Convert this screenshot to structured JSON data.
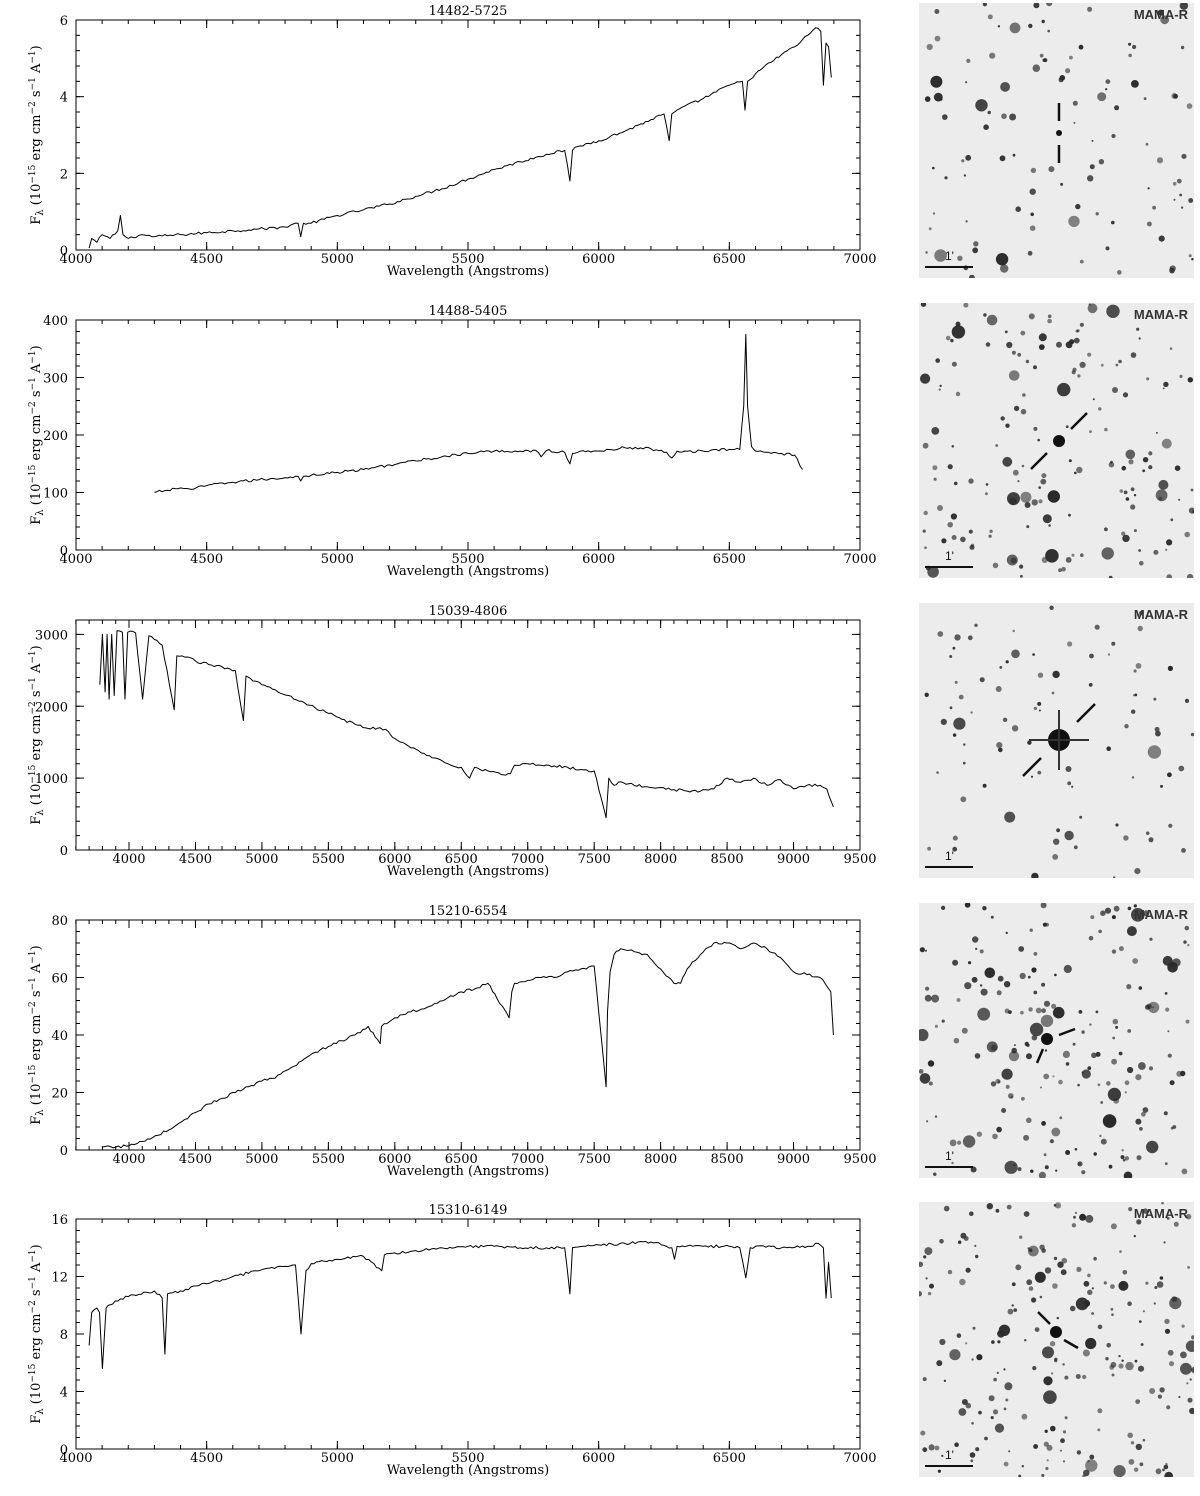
{
  "figure": {
    "xlabel": "Wavelength (Angstroms)",
    "ylabel_parts": {
      "flux": "F",
      "flux_sub": "λ",
      "open": " (10",
      "exp1": "−15",
      "erg": " erg cm",
      "exp2": "−2",
      "s": " s",
      "exp3": "−1",
      "A": " A",
      "exp4": "−1",
      "close": ")"
    },
    "finder_label": "MAMA-R",
    "scale_label": "1'"
  },
  "chart_data": [
    {
      "type": "line",
      "title": "14482-5725",
      "xlabel": "Wavelength (Angstroms)",
      "ylabel": "Fλ (10^-15 erg cm^-2 s^-1 A^-1)",
      "xlim": [
        4000,
        7000
      ],
      "ylim": [
        0,
        6
      ],
      "xticks": [
        "4000",
        "4500",
        "5000",
        "5500",
        "6000",
        "6500",
        "7000"
      ],
      "yticks": [
        "0",
        "2",
        "4",
        "6"
      ],
      "series": [
        {
          "x": [
            4050,
            4060,
            4080,
            4100,
            4130,
            4160,
            4170,
            4180,
            4200,
            4250,
            4300,
            4400,
            4500,
            4600,
            4700,
            4800,
            4850,
            4860,
            4870,
            4900,
            5000,
            5100,
            5200,
            5300,
            5400,
            5500,
            5600,
            5700,
            5800,
            5870,
            5890,
            5900,
            5920,
            6000,
            6100,
            6200,
            6250,
            6270,
            6280,
            6290,
            6300,
            6400,
            6500,
            6550,
            6560,
            6570,
            6600,
            6700,
            6750,
            6800,
            6830,
            6850,
            6860,
            6870,
            6880,
            6890
          ],
          "y": [
            0.05,
            0.3,
            0.2,
            0.4,
            0.3,
            0.5,
            0.9,
            0.4,
            0.3,
            0.4,
            0.35,
            0.4,
            0.45,
            0.5,
            0.55,
            0.6,
            0.7,
            0.35,
            0.7,
            0.7,
            0.9,
            1.05,
            1.2,
            1.4,
            1.6,
            1.85,
            2.1,
            2.3,
            2.5,
            2.6,
            1.8,
            2.6,
            2.7,
            2.85,
            3.1,
            3.4,
            3.55,
            2.85,
            3.55,
            3.6,
            3.65,
            3.95,
            4.3,
            4.4,
            3.65,
            4.4,
            4.6,
            5.1,
            5.3,
            5.6,
            5.8,
            5.7,
            4.3,
            5.4,
            5.3,
            4.5
          ]
        }
      ]
    },
    {
      "type": "line",
      "title": "14488-5405",
      "xlabel": "Wavelength (Angstroms)",
      "ylabel": "Fλ (10^-15 erg cm^-2 s^-1 A^-1)",
      "xlim": [
        4000,
        7000
      ],
      "ylim": [
        0,
        400
      ],
      "xticks": [
        "4000",
        "4500",
        "5000",
        "5500",
        "6000",
        "6500",
        "7000"
      ],
      "yticks": [
        "0",
        "100",
        "200",
        "300",
        "400"
      ],
      "series": [
        {
          "x": [
            4300,
            4350,
            4400,
            4450,
            4500,
            4600,
            4700,
            4800,
            4850,
            4860,
            4870,
            4900,
            5000,
            5100,
            5200,
            5300,
            5400,
            5500,
            5600,
            5700,
            5760,
            5780,
            5800,
            5870,
            5890,
            5900,
            5920,
            6000,
            6100,
            6200,
            6260,
            6280,
            6300,
            6400,
            6500,
            6540,
            6555,
            6563,
            6570,
            6585,
            6600,
            6650,
            6700,
            6750,
            6780
          ],
          "y": [
            100,
            104,
            108,
            106,
            112,
            118,
            122,
            126,
            128,
            120,
            128,
            130,
            135,
            140,
            148,
            155,
            162,
            168,
            172,
            172,
            173,
            162,
            173,
            170,
            150,
            168,
            170,
            172,
            178,
            176,
            170,
            160,
            172,
            172,
            175,
            175,
            250,
            375,
            250,
            180,
            172,
            170,
            168,
            165,
            140
          ]
        }
      ]
    },
    {
      "type": "line",
      "title": "15039-4806",
      "xlabel": "Wavelength (Angstroms)",
      "ylabel": "Fλ (10^-15 erg cm^-2 s^-1 A^-1)",
      "xlim": [
        3600,
        9500
      ],
      "ylim": [
        0,
        3200
      ],
      "xticks": [
        "4000",
        "4500",
        "5000",
        "5500",
        "6000",
        "6500",
        "7000",
        "7500",
        "8000",
        "8500",
        "9000",
        "9500"
      ],
      "yticks": [
        "0",
        "1000",
        "2000",
        "3000"
      ],
      "series": [
        {
          "x": [
            3780,
            3800,
            3820,
            3835,
            3850,
            3870,
            3889,
            3910,
            3950,
            3970,
            3990,
            4050,
            4102,
            4150,
            4250,
            4340,
            4360,
            4400,
            4500,
            4600,
            4700,
            4800,
            4861,
            4880,
            4950,
            5000,
            5100,
            5200,
            5300,
            5400,
            5500,
            5600,
            5700,
            5800,
            5890,
            5950,
            6000,
            6100,
            6200,
            6300,
            6400,
            6500,
            6563,
            6600,
            6700,
            6800,
            6870,
            6900,
            7000,
            7100,
            7200,
            7300,
            7400,
            7500,
            7590,
            7610,
            7650,
            7700,
            7800,
            7900,
            8000,
            8100,
            8200,
            8300,
            8400,
            8500,
            8600,
            8700,
            8800,
            8900,
            9000,
            9100,
            9200,
            9250,
            9300
          ],
          "y": [
            2300,
            3000,
            2200,
            3000,
            2100,
            3000,
            2150,
            3050,
            3030,
            2100,
            3030,
            3020,
            2100,
            2980,
            2850,
            1950,
            2700,
            2700,
            2630,
            2580,
            2550,
            2500,
            1800,
            2420,
            2350,
            2300,
            2230,
            2150,
            2070,
            1980,
            1900,
            1820,
            1750,
            1690,
            1700,
            1650,
            1550,
            1450,
            1350,
            1280,
            1200,
            1150,
            1000,
            1150,
            1100,
            1050,
            1060,
            1180,
            1200,
            1180,
            1170,
            1150,
            1120,
            1100,
            450,
            1000,
            900,
            950,
            900,
            880,
            870,
            840,
            820,
            820,
            850,
            1000,
            940,
            1000,
            900,
            980,
            850,
            900,
            900,
            850,
            600
          ]
        }
      ]
    },
    {
      "type": "line",
      "title": "15210-6554",
      "xlabel": "Wavelength (Angstroms)",
      "ylabel": "Fλ (10^-15 erg cm^-2 s^-1 A^-1)",
      "xlim": [
        3600,
        9500
      ],
      "ylim": [
        0,
        80
      ],
      "xticks": [
        "4000",
        "4500",
        "5000",
        "5500",
        "6000",
        "6500",
        "7000",
        "7500",
        "8000",
        "8500",
        "9000",
        "9500"
      ],
      "yticks": [
        "0",
        "20",
        "40",
        "60",
        "80"
      ],
      "series": [
        {
          "x": [
            3800,
            3900,
            4000,
            4100,
            4200,
            4300,
            4400,
            4500,
            4600,
            4700,
            4800,
            4900,
            5000,
            5100,
            5200,
            5300,
            5400,
            5500,
            5600,
            5700,
            5800,
            5890,
            5900,
            6000,
            6100,
            6200,
            6300,
            6400,
            6500,
            6600,
            6700,
            6860,
            6880,
            6900,
            7000,
            7100,
            7200,
            7300,
            7400,
            7500,
            7590,
            7600,
            7620,
            7650,
            7700,
            7800,
            7900,
            8000,
            8100,
            8150,
            8200,
            8300,
            8400,
            8500,
            8600,
            8700,
            8800,
            8900,
            9000,
            9100,
            9200,
            9280,
            9300
          ],
          "y": [
            1,
            1,
            1.5,
            3,
            5,
            7,
            10,
            13,
            16,
            18,
            20,
            22,
            24,
            25,
            28,
            31,
            34,
            36,
            38,
            40,
            43,
            37,
            43,
            46,
            48,
            49,
            51,
            53,
            55,
            56,
            58,
            46,
            55,
            58,
            59,
            60,
            60,
            62,
            63,
            64,
            22,
            48,
            62,
            68,
            70,
            69,
            68,
            63,
            58,
            58,
            63,
            68,
            72,
            72,
            70,
            72,
            70,
            67,
            62,
            61,
            60,
            55,
            40
          ]
        }
      ]
    },
    {
      "type": "line",
      "title": "15310-6149",
      "xlabel": "Wavelength (Angstroms)",
      "ylabel": "Fλ (10^-15 erg cm^-2 s^-1 A^-1)",
      "xlim": [
        4000,
        7000
      ],
      "ylim": [
        0,
        16
      ],
      "xticks": [
        "4000",
        "4500",
        "5000",
        "5500",
        "6000",
        "6500",
        "7000"
      ],
      "yticks": [
        "0",
        "4",
        "8",
        "12",
        "16"
      ],
      "series": [
        {
          "x": [
            4050,
            4060,
            4080,
            4090,
            4101,
            4115,
            4150,
            4200,
            4300,
            4330,
            4340,
            4350,
            4400,
            4500,
            4600,
            4700,
            4800,
            4840,
            4861,
            4880,
            4900,
            5000,
            5100,
            5170,
            5180,
            5200,
            5300,
            5400,
            5500,
            5600,
            5700,
            5800,
            5870,
            5890,
            5900,
            5950,
            6000,
            6100,
            6200,
            6280,
            6290,
            6300,
            6400,
            6500,
            6540,
            6563,
            6580,
            6600,
            6700,
            6800,
            6840,
            6860,
            6870,
            6880,
            6890
          ],
          "y": [
            7.2,
            9.5,
            9.8,
            9.5,
            5.6,
            9.8,
            10.3,
            10.6,
            11.0,
            10.5,
            6.6,
            10.8,
            11.0,
            11.5,
            12.0,
            12.4,
            12.7,
            12.8,
            8.0,
            12.4,
            12.9,
            13.2,
            13.4,
            12.4,
            13.5,
            13.6,
            13.8,
            14.0,
            14.1,
            14.1,
            14.0,
            14.0,
            14.0,
            10.8,
            14.0,
            14.1,
            14.2,
            14.3,
            14.4,
            14.0,
            13.2,
            14.1,
            14.1,
            14.1,
            14.0,
            11.9,
            14.0,
            14.1,
            14.0,
            14.1,
            14.3,
            14.0,
            10.5,
            13.0,
            10.5
          ]
        }
      ]
    }
  ]
}
